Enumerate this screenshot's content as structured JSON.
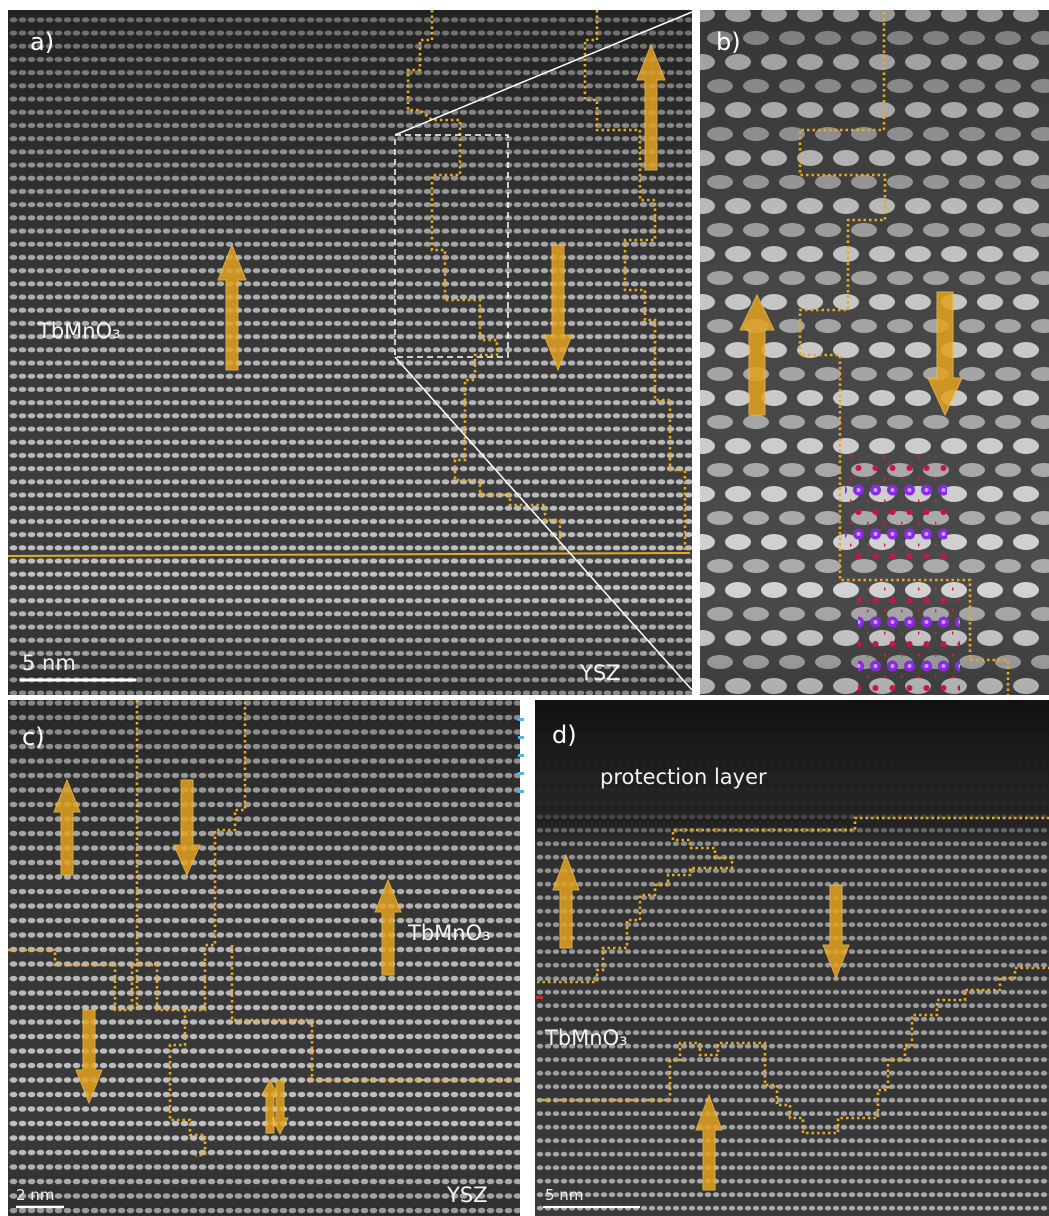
{
  "panels": [
    {
      "label": "a)",
      "material": "TbMnO₃",
      "scale_bar": "5 nm",
      "substrate": "YSZ"
    },
    {
      "label": "b)"
    },
    {
      "label": "c)",
      "material": "TbMnO₃",
      "scale_bar": "2 nm",
      "substrate": "YSZ"
    },
    {
      "label": "d)",
      "layer": "protection layer",
      "material": "TbMnO₃",
      "scale_bar": "5 nm"
    }
  ]
}
